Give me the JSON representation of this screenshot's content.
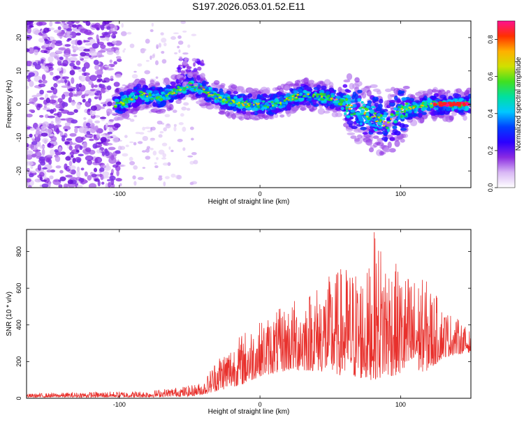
{
  "title": "S197.2026.053.01.52.E11",
  "colors": {
    "snr_line": "#e8302c",
    "frame": "#000000",
    "colorbar_stops": [
      "#ffffff",
      "#d9b8f5",
      "#8a2be2",
      "#2a00ff",
      "#0040ff",
      "#00c8ff",
      "#00e0a0",
      "#40e020",
      "#d0e000",
      "#ffb000",
      "#ff3000",
      "#ff1090"
    ]
  },
  "chart_data": [
    {
      "type": "heatmap",
      "xlabel": "Height of straight line (km)",
      "ylabel": "Frequency (Hz)",
      "xlim": [
        -166,
        150
      ],
      "ylim": [
        -25,
        25
      ],
      "xticks": [
        -100,
        0,
        100
      ],
      "xtick_labels": [
        "-100",
        "0",
        "100"
      ],
      "yticks": [
        -20,
        -10,
        0,
        10,
        20
      ],
      "ytick_labels": [
        "-20",
        "-10",
        "0",
        "10",
        "20"
      ],
      "colorbar": {
        "label": "Normalized spectral amplitude",
        "range": [
          0,
          0.9
        ],
        "ticks": [
          0.0,
          0.2,
          0.4,
          0.6,
          0.8
        ],
        "tick_labels": [
          "0.0",
          "0.2",
          "0.4",
          "0.6",
          "0.8"
        ]
      },
      "ridge_center": [
        {
          "x": -100,
          "y": 0
        },
        {
          "x": -85,
          "y": 3
        },
        {
          "x": -70,
          "y": 2
        },
        {
          "x": -50,
          "y": 6
        },
        {
          "x": -30,
          "y": 2
        },
        {
          "x": -10,
          "y": 0
        },
        {
          "x": 10,
          "y": 0
        },
        {
          "x": 30,
          "y": 3
        },
        {
          "x": 50,
          "y": 2
        },
        {
          "x": 70,
          "y": -2
        },
        {
          "x": 90,
          "y": -6
        },
        {
          "x": 100,
          "y": -2
        },
        {
          "x": 120,
          "y": 0
        },
        {
          "x": 150,
          "y": 0
        }
      ]
    },
    {
      "type": "line",
      "xlabel": "Height of straight line (km)",
      "ylabel": "SNR (10 * v/v)",
      "xlim": [
        -166,
        150
      ],
      "ylim": [
        0,
        920
      ],
      "xticks": [
        -100,
        0,
        100
      ],
      "xtick_labels": [
        "-100",
        "0",
        "100"
      ],
      "yticks": [
        0,
        200,
        400,
        600,
        800
      ],
      "ytick_labels": [
        "0",
        "200",
        "400",
        "600",
        "800"
      ],
      "envelope": {
        "x": [
          -166,
          -120,
          -80,
          -60,
          -50,
          -40,
          -30,
          -20,
          -10,
          0,
          20,
          40,
          60,
          77,
          80,
          100,
          120,
          130,
          140,
          150
        ],
        "low": [
          5,
          5,
          5,
          10,
          10,
          20,
          40,
          60,
          80,
          120,
          150,
          150,
          120,
          100,
          100,
          130,
          150,
          220,
          240,
          250
        ],
        "high": [
          25,
          35,
          40,
          60,
          70,
          90,
          240,
          300,
          380,
          420,
          520,
          620,
          730,
          700,
          920,
          700,
          640,
          500,
          440,
          360
        ]
      }
    }
  ]
}
